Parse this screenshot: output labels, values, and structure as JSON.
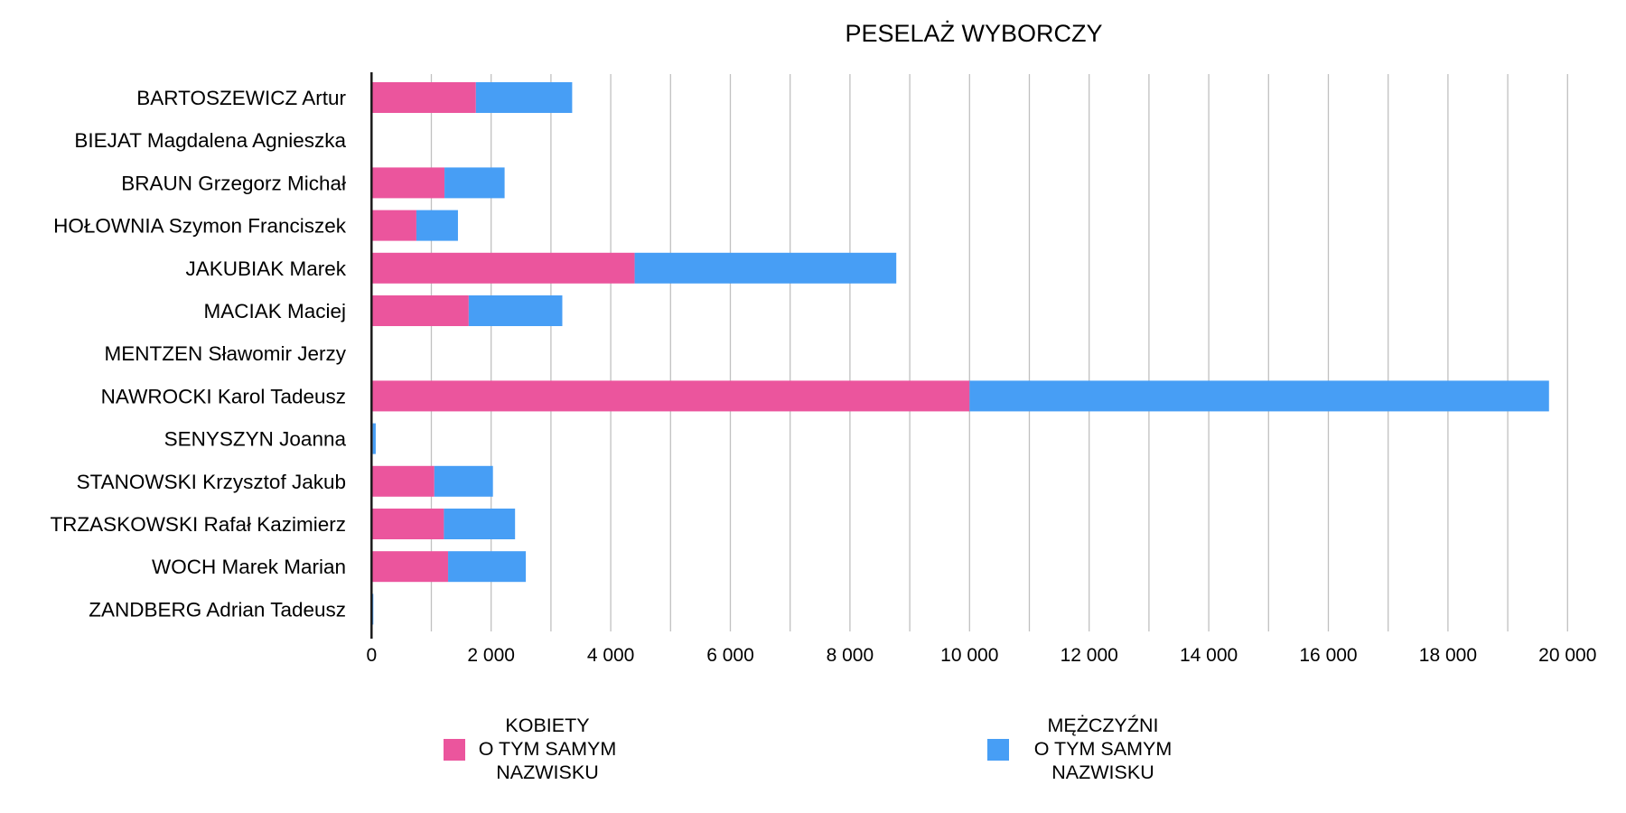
{
  "chart_data": {
    "type": "bar",
    "orientation": "horizontal",
    "stacked": true,
    "title": "PESELAŻ WYBORCZY",
    "xlabel": "",
    "ylabel": "",
    "xlim": [
      0,
      20000
    ],
    "grid": true,
    "legend_position": "bottom",
    "categories": [
      "BARTOSZEWICZ Artur",
      "BIEJAT Magdalena Agnieszka",
      "BRAUN Grzegorz Michał",
      "HOŁOWNIA Szymon Franciszek",
      "JAKUBIAK Marek",
      "MACIAK Maciej",
      "MENTZEN Sławomir Jerzy",
      "NAWROCKI Karol Tadeusz",
      "SENYSZYN Joanna",
      "STANOWSKI Krzysztof Jakub",
      "TRZASKOWSKI Rafał Kazimierz",
      "WOCH Marek Marian",
      "ZANDBERG Adrian Tadeusz"
    ],
    "series": [
      {
        "name": "KOBIETY O TYM SAMYM NAZWISKU",
        "legend_lines": [
          "KOBIETY",
          "O TYM SAMYM",
          "NAZWISKU"
        ],
        "color": "#EB559D",
        "values": [
          1745,
          0,
          1220,
          750,
          4400,
          1625,
          0,
          10000,
          20,
          1050,
          1210,
          1280,
          10
        ]
      },
      {
        "name": "MĘŻCZYŹNI O TYM SAMYM NAZWISKU",
        "legend_lines": [
          "MĘŻCZYŹNI",
          "O TYM SAMYM",
          "NAZWISKU"
        ],
        "color": "#479EF5",
        "values": [
          1610,
          0,
          1005,
          695,
          4375,
          1565,
          0,
          9690,
          50,
          980,
          1190,
          1300,
          20
        ]
      }
    ],
    "x_ticks": [
      0,
      2000,
      4000,
      6000,
      8000,
      10000,
      12000,
      14000,
      16000,
      18000,
      20000
    ],
    "x_tick_labels": [
      "0",
      "2 000",
      "4 000",
      "6 000",
      "8 000",
      "10 000",
      "12 000",
      "14 000",
      "16 000",
      "18 000",
      "20 000"
    ],
    "minor_grid_step": 1000,
    "colors": {
      "axis": "#1a1a1a",
      "grid": "#c0c0c0"
    }
  }
}
